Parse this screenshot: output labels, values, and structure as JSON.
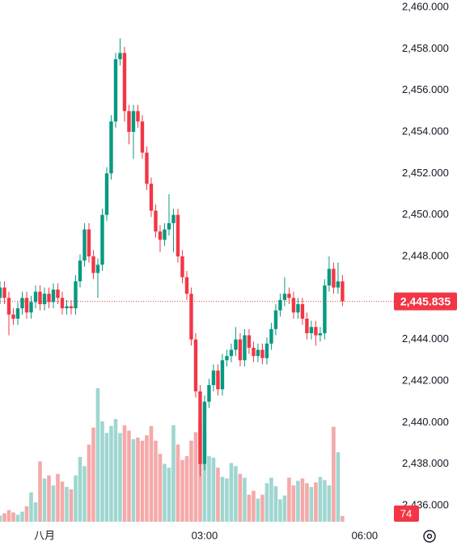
{
  "chart_data": {
    "type": "candlestick",
    "x": [
      -50,
      -45,
      -40,
      -35,
      -30,
      -25,
      -20,
      -15,
      -10,
      -5,
      0,
      5,
      10,
      15,
      20,
      25,
      30,
      35,
      40,
      45,
      50,
      55,
      60,
      65,
      70,
      75,
      80,
      85,
      90,
      95,
      100,
      105,
      110,
      115,
      120,
      125,
      130,
      135,
      140,
      145,
      150,
      155,
      160,
      165,
      170,
      175,
      180,
      185,
      190,
      195,
      200,
      205,
      210,
      215,
      220,
      225,
      230,
      235,
      240,
      245,
      250,
      255,
      260,
      265,
      270,
      275,
      280,
      285,
      290,
      295,
      300,
      305,
      310,
      315,
      320,
      325,
      330,
      335
    ],
    "open": [
      2446.0,
      2446.5,
      2446.0,
      2445.2,
      2445.0,
      2445.5,
      2446.0,
      2445.3,
      2445.8,
      2446.3,
      2445.7,
      2446.2,
      2445.8,
      2446.4,
      2446.0,
      2445.5,
      2445.6,
      2445.5,
      2446.8,
      2447.8,
      2449.3,
      2448.0,
      2447.2,
      2447.6,
      2450.0,
      2452.0,
      2454.5,
      2457.5,
      2457.8,
      2455.0,
      2454.0,
      2455.0,
      2454.5,
      2453.0,
      2451.5,
      2450.2,
      2449.2,
      2448.8,
      2449.3,
      2449.6,
      2450.0,
      2448.0,
      2447.0,
      2446.2,
      2444.0,
      2441.5,
      2438.0,
      2441.0,
      2441.8,
      2442.5,
      2441.6,
      2443.0,
      2443.2,
      2443.5,
      2444.0,
      2443.0,
      2444.2,
      2443.6,
      2443.2,
      2443.5,
      2443.1,
      2443.8,
      2444.5,
      2445.4,
      2445.9,
      2446.2,
      2446.0,
      2445.3,
      2445.7,
      2445.0,
      2444.3,
      2444.6,
      2444.2,
      2444.3,
      2446.6,
      2447.4,
      2446.5,
      2446.8
    ],
    "high": [
      2446.8,
      2446.8,
      2446.3,
      2445.5,
      2445.8,
      2446.3,
      2446.3,
      2446.1,
      2446.6,
      2446.6,
      2446.5,
      2446.5,
      2446.7,
      2446.7,
      2446.3,
      2445.9,
      2445.9,
      2447.1,
      2448.1,
      2449.6,
      2449.6,
      2448.3,
      2447.9,
      2450.3,
      2452.3,
      2454.8,
      2457.8,
      2458.5,
      2458.1,
      2455.3,
      2455.3,
      2455.3,
      2454.8,
      2453.3,
      2451.8,
      2450.5,
      2449.5,
      2449.6,
      2451.0,
      2450.3,
      2450.3,
      2448.3,
      2447.3,
      2446.5,
      2444.3,
      2441.8,
      2441.3,
      2442.1,
      2442.8,
      2442.8,
      2443.3,
      2443.5,
      2443.8,
      2444.6,
      2444.3,
      2444.5,
      2444.5,
      2443.9,
      2443.8,
      2443.8,
      2444.1,
      2444.8,
      2445.7,
      2446.2,
      2447.0,
      2446.5,
      2446.3,
      2446.0,
      2446.0,
      2445.3,
      2444.9,
      2444.9,
      2444.6,
      2446.9,
      2448.0,
      2447.7,
      2447.7,
      2447.1
    ],
    "low": [
      2445.7,
      2445.7,
      2444.2,
      2444.7,
      2444.7,
      2445.2,
      2445.0,
      2445.0,
      2445.5,
      2445.4,
      2445.4,
      2445.5,
      2445.5,
      2445.7,
      2445.2,
      2445.2,
      2445.2,
      2445.2,
      2446.5,
      2447.5,
      2447.7,
      2446.9,
      2446.0,
      2447.3,
      2449.7,
      2451.7,
      2454.2,
      2457.2,
      2454.5,
      2453.4,
      2452.7,
      2454.2,
      2452.7,
      2451.2,
      2449.9,
      2448.9,
      2448.2,
      2448.5,
      2449.0,
      2448.2,
      2447.7,
      2446.7,
      2445.9,
      2443.7,
      2441.2,
      2437.4,
      2437.7,
      2440.7,
      2441.5,
      2441.3,
      2441.3,
      2442.7,
      2442.9,
      2443.2,
      2442.7,
      2442.7,
      2443.3,
      2442.9,
      2442.9,
      2442.8,
      2442.8,
      2443.5,
      2444.2,
      2445.1,
      2445.6,
      2445.7,
      2445.0,
      2445.0,
      2444.7,
      2444.0,
      2444.0,
      2443.7,
      2443.9,
      2444.0,
      2446.3,
      2446.2,
      2446.2,
      2445.6
    ],
    "close": [
      2446.5,
      2446.0,
      2445.2,
      2445.0,
      2445.5,
      2446.0,
      2445.3,
      2445.8,
      2446.3,
      2445.7,
      2446.2,
      2445.8,
      2446.4,
      2446.0,
      2445.5,
      2445.6,
      2445.5,
      2446.8,
      2447.8,
      2449.3,
      2448.0,
      2447.2,
      2447.6,
      2450.0,
      2452.0,
      2454.5,
      2457.5,
      2457.8,
      2455.0,
      2454.0,
      2455.0,
      2454.5,
      2453.0,
      2451.5,
      2450.2,
      2449.2,
      2448.8,
      2449.3,
      2449.6,
      2450.0,
      2448.0,
      2447.0,
      2446.2,
      2444.0,
      2441.5,
      2438.0,
      2441.0,
      2441.8,
      2442.5,
      2441.6,
      2443.0,
      2443.2,
      2443.5,
      2444.0,
      2443.0,
      2444.2,
      2443.6,
      2443.2,
      2443.5,
      2443.1,
      2443.8,
      2444.5,
      2445.4,
      2445.9,
      2446.2,
      2446.0,
      2445.3,
      2445.7,
      2445.0,
      2444.3,
      2444.6,
      2444.2,
      2444.3,
      2446.6,
      2447.4,
      2446.5,
      2446.8,
      2445.835
    ],
    "volume": [
      80,
      110,
      150,
      120,
      90,
      130,
      200,
      380,
      250,
      780,
      560,
      600,
      470,
      620,
      520,
      450,
      420,
      600,
      840,
      720,
      1000,
      1220,
      1730,
      1300,
      1150,
      1240,
      1330,
      1150,
      1250,
      1180,
      1070,
      1090,
      1050,
      1120,
      1240,
      1050,
      880,
      750,
      700,
      1250,
      1000,
      800,
      850,
      1050,
      1160,
      1300,
      1170,
      850,
      830,
      700,
      580,
      560,
      760,
      720,
      620,
      570,
      350,
      400,
      300,
      350,
      500,
      570,
      460,
      290,
      340,
      570,
      470,
      530,
      560,
      500,
      450,
      510,
      580,
      540,
      470,
      1230,
      900,
      74
    ],
    "price_label": "2,445.835",
    "xlim": [
      -50,
      391
    ],
    "xticks": [
      {
        "value": 0,
        "label": "八月"
      },
      {
        "value": 180,
        "label": "03:00"
      },
      {
        "value": 360,
        "label": "06:00"
      }
    ],
    "ylim": [
      2435.3,
      2460.35
    ],
    "yticks": [
      {
        "value": 2436,
        "label": "2,436.000"
      },
      {
        "value": 2438,
        "label": "2,438.000"
      },
      {
        "value": 2440,
        "label": "2,440.000"
      },
      {
        "value": 2442,
        "label": "2,442.000"
      },
      {
        "value": 2444,
        "label": "2,444.000"
      },
      {
        "value": 2446,
        "label": "2,446.000"
      },
      {
        "value": 2448,
        "label": "2,448.000"
      },
      {
        "value": 2450,
        "label": "2,450.000"
      },
      {
        "value": 2452,
        "label": "2,452.000"
      },
      {
        "value": 2454,
        "label": "2,454.000"
      },
      {
        "value": 2456,
        "label": "2,456.000"
      },
      {
        "value": 2458,
        "label": "2,458.000"
      },
      {
        "value": 2460,
        "label": "2,460.000"
      }
    ],
    "volume_ylim": [
      0,
      1740
    ],
    "up_color": "#089981",
    "down_color": "#f23645",
    "volume_up_color": "#9fd6d0",
    "volume_down_color": "#f5a9a9",
    "grid": false
  }
}
